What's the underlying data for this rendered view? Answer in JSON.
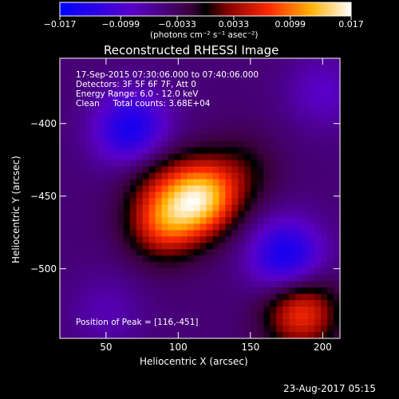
{
  "chart_data": {
    "type": "heatmap",
    "title": "Reconstructed RHESSI Image",
    "xlabel": "Heliocentric X (arcsec)",
    "ylabel": "Heliocentric Y (arcsec)",
    "xlim": [
      18,
      212
    ],
    "ylim": [
      -548,
      -355
    ],
    "x_ticks": [
      "50",
      "100",
      "150",
      "200"
    ],
    "x_tick_values": [
      50,
      100,
      150,
      200
    ],
    "y_ticks": [
      "−400",
      "−450",
      "−500"
    ],
    "y_tick_values": [
      -400,
      -450,
      -500
    ],
    "colorbar": {
      "ticks": [
        "−0.017",
        "−0.0099",
        "−0.0033",
        "0.0033",
        "0.0099",
        "0.017"
      ],
      "tick_values": [
        -0.017,
        -0.0099,
        -0.0033,
        0.0033,
        0.0099,
        0.017
      ],
      "range": [
        -0.017,
        0.017
      ],
      "units_label": "(photons cm⁻² s⁻¹ asec⁻²)"
    },
    "info_lines": [
      "17-Sep-2015 07:30:06.000 to 07:40:06.000",
      "Detectors: 3F 5F 6F 7F, Att 0",
      "Energy Range: 6.0 - 12.0 keV",
      "Clean     Total counts: 3.68E+04"
    ],
    "peak_label": "Position of Peak = [116,-451]",
    "peak": [
      116,
      -451
    ],
    "sources": [
      {
        "x": 116,
        "y": -451,
        "value": 0.017
      },
      {
        "x": 90,
        "y": -468,
        "value": 0.012
      },
      {
        "x": 82,
        "y": -432,
        "value": 0.004
      },
      {
        "x": 145,
        "y": -432,
        "value": 0.004
      },
      {
        "x": 185,
        "y": -530,
        "value": 0.012
      },
      {
        "x": 50,
        "y": -530,
        "value": -0.003
      },
      {
        "x": 68,
        "y": -405,
        "value": -0.011
      },
      {
        "x": 175,
        "y": -492,
        "value": -0.011
      },
      {
        "x": 200,
        "y": -378,
        "value": -0.004
      }
    ]
  },
  "footer": {
    "timestamp": "23-Aug-2017 05:15"
  }
}
